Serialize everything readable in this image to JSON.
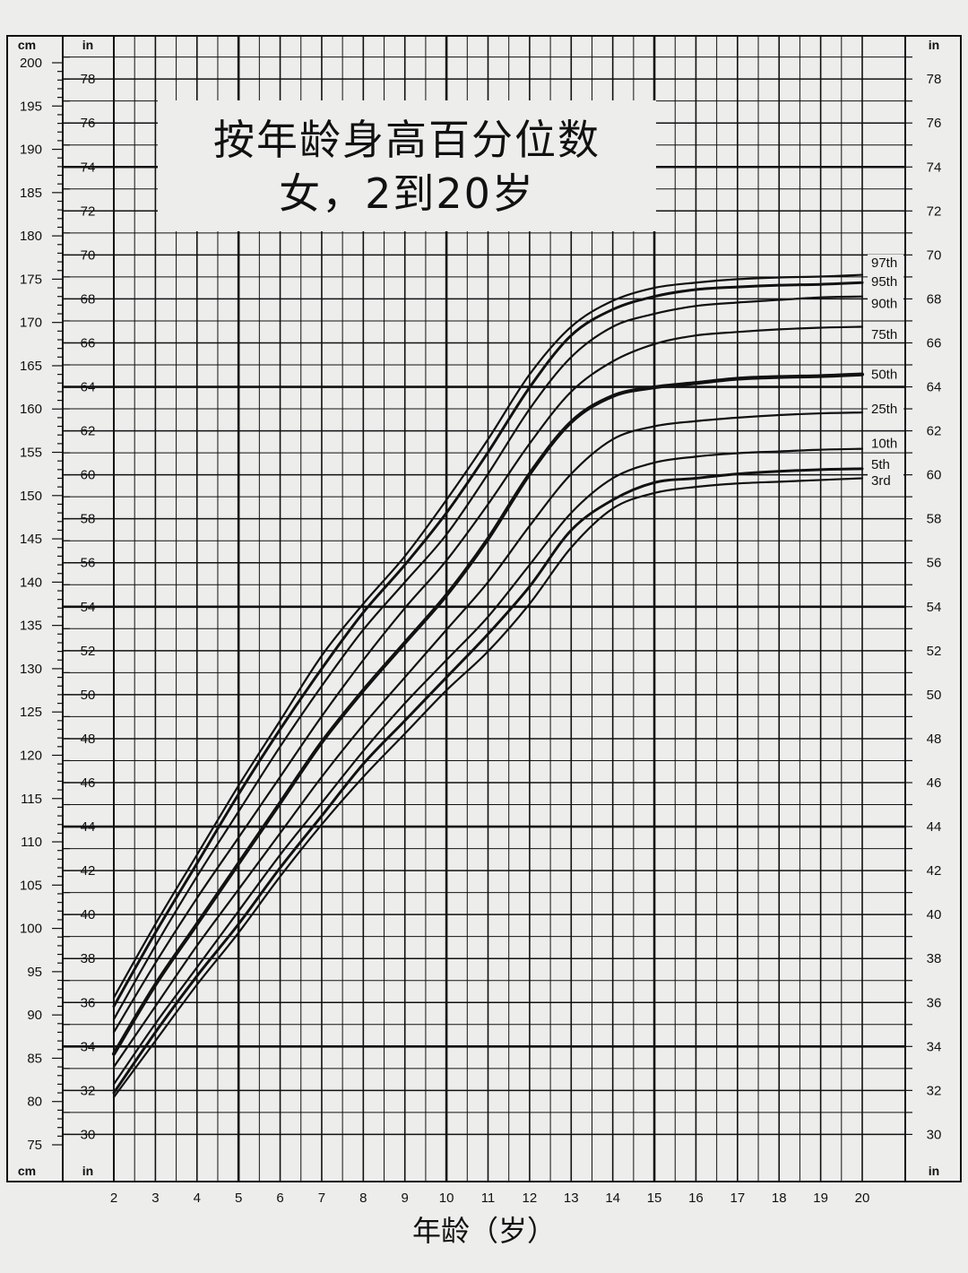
{
  "title": {
    "line1": "按年龄身高百分位数",
    "line2": "女，2到20岁"
  },
  "chart_data": {
    "type": "line",
    "title": "按年龄身高百分位数 女，2到20岁",
    "xlabel": "年龄（岁）",
    "ylabel_left": "cm",
    "ylabel_right": "in",
    "xlim": [
      2,
      20
    ],
    "ylim_cm": [
      75,
      200
    ],
    "x_ticks": [
      2,
      3,
      4,
      5,
      6,
      7,
      8,
      9,
      10,
      11,
      12,
      13,
      14,
      15,
      16,
      17,
      18,
      19,
      20
    ],
    "cm_ticks": [
      75,
      80,
      85,
      90,
      95,
      100,
      105,
      110,
      115,
      120,
      125,
      130,
      135,
      140,
      145,
      150,
      155,
      160,
      165,
      170,
      175,
      180,
      185,
      190,
      195,
      200
    ],
    "in_ticks": [
      30,
      32,
      34,
      36,
      38,
      40,
      42,
      44,
      46,
      48,
      50,
      52,
      54,
      56,
      58,
      60,
      62,
      64,
      66,
      68,
      70,
      72,
      74,
      76,
      78
    ],
    "grid": true,
    "x": [
      2,
      3,
      4,
      5,
      6,
      7,
      8,
      9,
      10,
      11,
      12,
      13,
      14,
      15,
      16,
      17,
      18,
      19,
      20
    ],
    "series": [
      {
        "name": "97th",
        "values": [
          92,
          100.5,
          108.5,
          116.5,
          124,
          131.5,
          137.5,
          143,
          149.5,
          156.5,
          164,
          169.5,
          172.5,
          174,
          174.6,
          175,
          175.2,
          175.3,
          175.5
        ]
      },
      {
        "name": "95th",
        "values": [
          91,
          99.5,
          107.5,
          115.5,
          123,
          130,
          136.5,
          142,
          148,
          155,
          162.5,
          168.5,
          171.5,
          173,
          173.8,
          174.1,
          174.3,
          174.4,
          174.6
        ]
      },
      {
        "name": "90th",
        "values": [
          89.5,
          98,
          106,
          113.5,
          121,
          128,
          134.5,
          140,
          145.5,
          152.5,
          160,
          166,
          169.5,
          171,
          171.9,
          172.3,
          172.6,
          172.9,
          173
        ]
      },
      {
        "name": "75th",
        "values": [
          88,
          96,
          103.5,
          110.5,
          117.5,
          124.5,
          131,
          137,
          142.5,
          149,
          156,
          162,
          165.5,
          167.5,
          168.5,
          168.9,
          169.2,
          169.4,
          169.5
        ]
      },
      {
        "name": "50th",
        "values": [
          85.5,
          93.5,
          100.5,
          107.5,
          114.5,
          121.5,
          127.5,
          133,
          138.5,
          145,
          152.5,
          158.5,
          161.5,
          162.5,
          163,
          163.5,
          163.7,
          163.8,
          164
        ]
      },
      {
        "name": "25th",
        "values": [
          84,
          91,
          98,
          104.5,
          111,
          117.5,
          123.5,
          129,
          134.5,
          140,
          146.5,
          152.5,
          156.5,
          158,
          158.6,
          159,
          159.3,
          159.5,
          159.6
        ]
      },
      {
        "name": "10th",
        "values": [
          82,
          89,
          95.5,
          102,
          108.5,
          114.5,
          120.5,
          126,
          131,
          136,
          142,
          148,
          152,
          153.8,
          154.5,
          154.9,
          155.1,
          155.3,
          155.4
        ]
      },
      {
        "name": "5th",
        "values": [
          81,
          88,
          94.5,
          100.5,
          107,
          113,
          119,
          124,
          129,
          134,
          139.5,
          146,
          149.5,
          151.5,
          152,
          152.5,
          152.8,
          153,
          153.1
        ]
      },
      {
        "name": "3rd",
        "values": [
          80.5,
          87,
          93.5,
          99.5,
          106,
          112,
          117.5,
          122.5,
          127.5,
          132,
          137.5,
          144,
          148.5,
          150.3,
          151,
          151.4,
          151.6,
          151.8,
          152
        ]
      }
    ],
    "bold_series": [
      "50th",
      "5th",
      "95th"
    ],
    "label_positions": {
      "97th": 176.5,
      "95th": 174.3,
      "90th": 171.8,
      "75th": 168.2,
      "50th": 163.6,
      "25th": 159.6,
      "10th": 155.6,
      "5th": 153.2,
      "3rd": 151.3
    }
  }
}
